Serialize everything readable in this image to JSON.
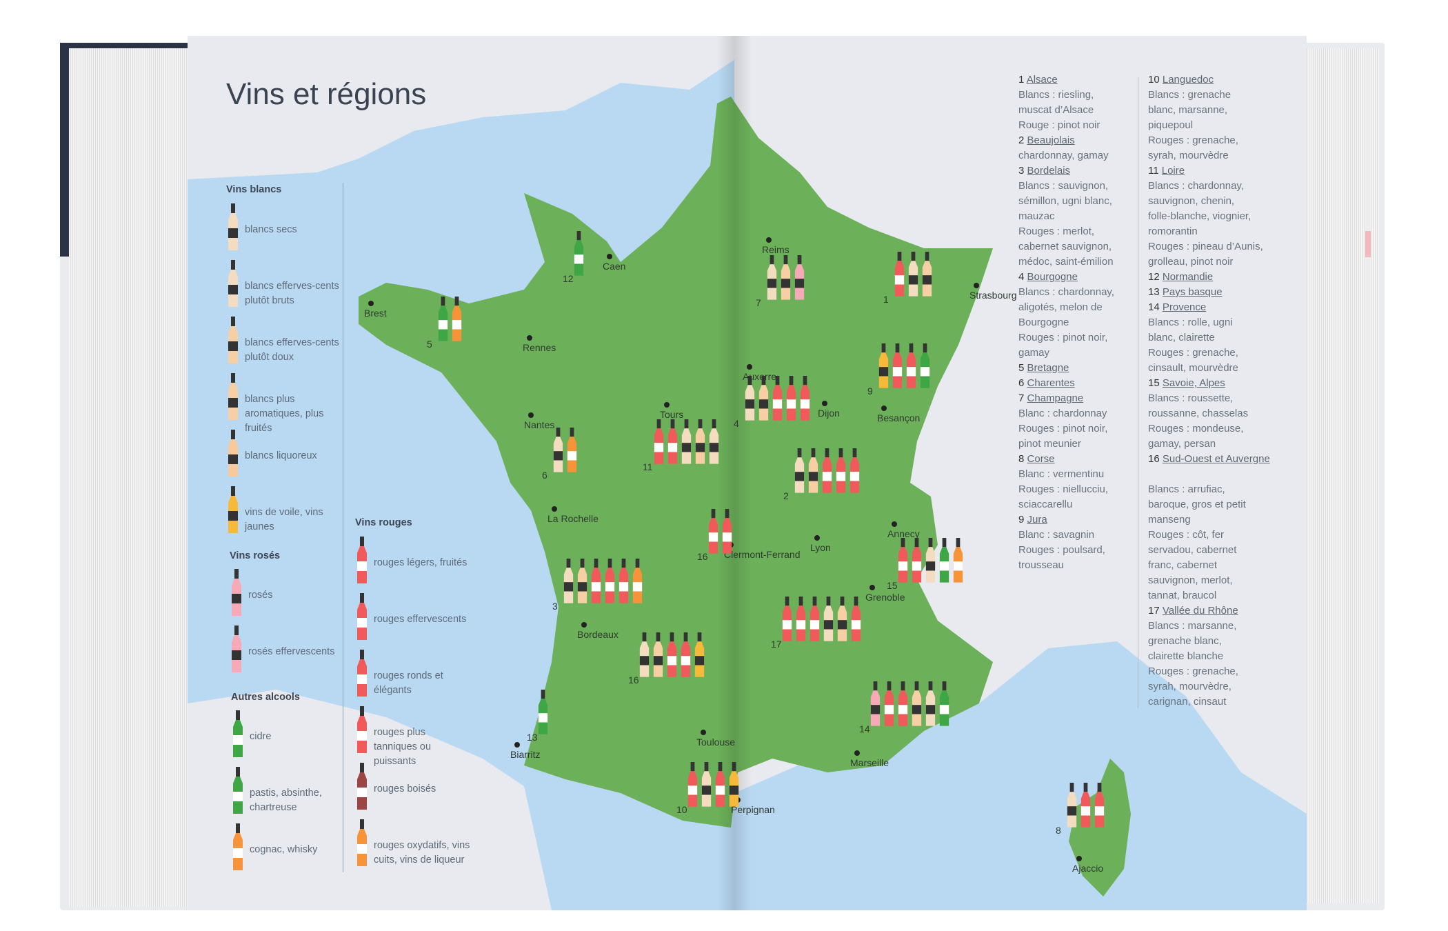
{
  "title": "Vins et régions",
  "colors": {
    "sea": "#b9d9f3",
    "land": "#6cb15a",
    "other_land": "#e8eaef",
    "blanc_sec": "#f3dcc0",
    "blanc_doux": "#f7cfa5",
    "liquoreux": "#f8c99a",
    "jaune": "#f6b93a",
    "rose": "#f6a9b6",
    "rouge": "#f15a5a",
    "rouge_boise": "#9b4545",
    "vert": "#3fa645",
    "orange": "#f7943a",
    "label_dark": "#333"
  },
  "legend": {
    "whites_heading": "Vins blancs",
    "whites": [
      {
        "label": "blancs secs",
        "type": "blanc_sec"
      },
      {
        "label": "blancs efferves-cents plutôt bruts",
        "type": "blanc_sec"
      },
      {
        "label": "blancs efferves-cents plutôt doux",
        "type": "blanc_doux"
      },
      {
        "label": "blancs plus aromatiques, plus fruités",
        "type": "blanc_doux"
      },
      {
        "label": "blancs liquoreux",
        "type": "liquoreux"
      },
      {
        "label": "vins de voile, vins jaunes",
        "type": "jaune"
      }
    ],
    "roses_heading": "Vins rosés",
    "roses": [
      {
        "label": "rosés",
        "type": "rose"
      },
      {
        "label": "rosés effervescents",
        "type": "rose"
      }
    ],
    "others_heading": "Autres alcools",
    "others": [
      {
        "label": "cidre",
        "type": "vert"
      },
      {
        "label": "pastis, absinthe, chartreuse",
        "type": "vert"
      },
      {
        "label": "cognac, whisky",
        "type": "orange"
      }
    ],
    "reds_heading": "Vins rouges",
    "reds": [
      {
        "label": "rouges légers, fruités",
        "type": "rouge"
      },
      {
        "label": "rouges effervescents",
        "type": "rouge"
      },
      {
        "label": "rouges ronds et élégants",
        "type": "rouge"
      },
      {
        "label": "rouges plus tanniques ou puissants",
        "type": "rouge"
      },
      {
        "label": "rouges boisés",
        "type": "rouge_boise"
      },
      {
        "label": "rouges oxydatifs, vins cuits, vins de liqueur",
        "type": "orange"
      }
    ]
  },
  "cities": [
    "Caen",
    "Brest",
    "Rennes",
    "Nantes",
    "Tours",
    "La Rochelle",
    "Bordeaux",
    "Biarritz",
    "Toulouse",
    "Perpignan",
    "Reims",
    "Auxerre",
    "Dijon",
    "Besançon",
    "Strasbourg",
    "Lyon",
    "Annecy",
    "Grenoble",
    "Marseille",
    "Ajaccio",
    "Clermont-Ferrand"
  ],
  "markers": [
    {
      "n": "12",
      "bottles": [
        "vert"
      ]
    },
    {
      "n": "5",
      "bottles": [
        "vert",
        "orange"
      ]
    },
    {
      "n": "6",
      "bottles": [
        "blanc_sec",
        "orange"
      ]
    },
    {
      "n": "11",
      "bottles": [
        "rouge",
        "rouge",
        "blanc_sec",
        "blanc_doux",
        "blanc_sec"
      ]
    },
    {
      "n": "3",
      "bottles": [
        "blanc_sec",
        "blanc_doux",
        "rouge",
        "rouge",
        "rouge",
        "orange"
      ]
    },
    {
      "n": "16",
      "bottles": [
        "blanc_sec",
        "blanc_doux",
        "rouge",
        "rouge",
        "jaune"
      ]
    },
    {
      "n": "13",
      "bottles": [
        "vert"
      ]
    },
    {
      "n": "10",
      "bottles": [
        "rouge",
        "blanc_sec",
        "rouge",
        "jaune"
      ]
    },
    {
      "n": "16",
      "bottles": [
        "rouge",
        "rouge"
      ]
    },
    {
      "n": "7",
      "bottles": [
        "blanc_sec",
        "blanc_doux",
        "rose"
      ]
    },
    {
      "n": "1",
      "bottles": [
        "rouge",
        "blanc_sec",
        "blanc_doux"
      ]
    },
    {
      "n": "4",
      "bottles": [
        "blanc_sec",
        "blanc_doux",
        "rouge",
        "rouge",
        "rouge"
      ]
    },
    {
      "n": "9",
      "bottles": [
        "jaune",
        "rouge",
        "rouge",
        "vert"
      ]
    },
    {
      "n": "2",
      "bottles": [
        "blanc_sec",
        "blanc_doux",
        "rouge",
        "rouge",
        "rouge"
      ]
    },
    {
      "n": "15",
      "bottles": [
        "rouge",
        "rouge",
        "blanc_sec",
        "vert",
        "orange"
      ]
    },
    {
      "n": "17",
      "bottles": [
        "rouge",
        "rouge",
        "rouge",
        "blanc_sec",
        "blanc_doux",
        "rouge"
      ]
    },
    {
      "n": "14",
      "bottles": [
        "rose",
        "rouge",
        "rouge",
        "blanc_doux",
        "blanc_sec",
        "vert"
      ]
    },
    {
      "n": "8",
      "bottles": [
        "blanc_sec",
        "rouge",
        "rouge"
      ]
    }
  ],
  "regions_col1": [
    {
      "n": "1",
      "name": "Alsace",
      "lines": [
        "Blancs : riesling,",
        "muscat d’Alsace",
        "Rouge : pinot noir"
      ]
    },
    {
      "n": "2",
      "name": "Beaujolais",
      "lines": [
        "chardonnay, gamay"
      ]
    },
    {
      "n": "3",
      "name": "Bordelais",
      "lines": [
        "Blancs : sauvignon,",
        "sémillon, ugni blanc,",
        "mauzac",
        "Rouges : merlot,",
        "cabernet sauvignon,",
        "médoc, saint-émilion"
      ]
    },
    {
      "n": "4",
      "name": "Bourgogne",
      "lines": [
        "Blancs : chardonnay,",
        "aligotés, melon de",
        "Bourgogne",
        "Rouges : pinot noir,",
        "gamay"
      ]
    },
    {
      "n": "5",
      "name": "Bretagne",
      "lines": []
    },
    {
      "n": "6",
      "name": "Charentes",
      "lines": []
    },
    {
      "n": "7",
      "name": "Champagne",
      "lines": [
        "Blanc : chardonnay",
        "Rouges : pinot noir,",
        "pinot meunier"
      ]
    },
    {
      "n": "8",
      "name": "Corse",
      "lines": [
        "Blanc : vermentinu",
        "Rouges : niellucciu,",
        "sciaccarellu"
      ]
    },
    {
      "n": "9",
      "name": "Jura",
      "lines": [
        "Blanc : savagnin",
        "Rouges : poulsard,",
        "trousseau"
      ]
    }
  ],
  "regions_col2": [
    {
      "n": "10",
      "name": "Languedoc",
      "lines": [
        "Blancs : grenache",
        "blanc, marsanne,",
        "piquepoul",
        "Rouges : grenache,",
        "syrah, mourvèdre"
      ]
    },
    {
      "n": "11",
      "name": "Loire",
      "lines": [
        "Blancs : chardonnay,",
        "sauvignon, chenin,",
        "folle-blanche, viognier,",
        "romorantin",
        "Rouges : pineau d’Aunis,",
        "grolleau, pinot noir"
      ]
    },
    {
      "n": "12",
      "name": "Normandie",
      "lines": []
    },
    {
      "n": "13",
      "name": "Pays basque",
      "lines": []
    },
    {
      "n": "14",
      "name": "Provence",
      "lines": [
        "Blancs : rolle, ugni",
        "blanc, clairette",
        "Rouges : grenache,",
        "cinsault, mourvèdre"
      ]
    },
    {
      "n": "15",
      "name": "Savoie, Alpes",
      "lines": [
        "Blancs : roussette,",
        "roussanne, chasselas",
        "Rouges : mondeuse,",
        "gamay, persan"
      ]
    },
    {
      "n": "16",
      "name": "Sud-Ouest et Auvergne",
      "lines": [
        "Blancs : arrufiac,",
        "baroque, gros et petit",
        "manseng",
        "Rouges : côt, fer",
        "servadou, cabernet",
        "franc, cabernet",
        "sauvignon, merlot,",
        "tannat, braucol"
      ]
    },
    {
      "n": "17",
      "name": "Vallée du Rhône",
      "lines": [
        "Blancs : marsanne,",
        "grenache blanc,",
        "clairette blanche",
        "Rouges : grenache,",
        "syrah, mourvèdre,",
        "carignan, cinsaut"
      ]
    }
  ]
}
